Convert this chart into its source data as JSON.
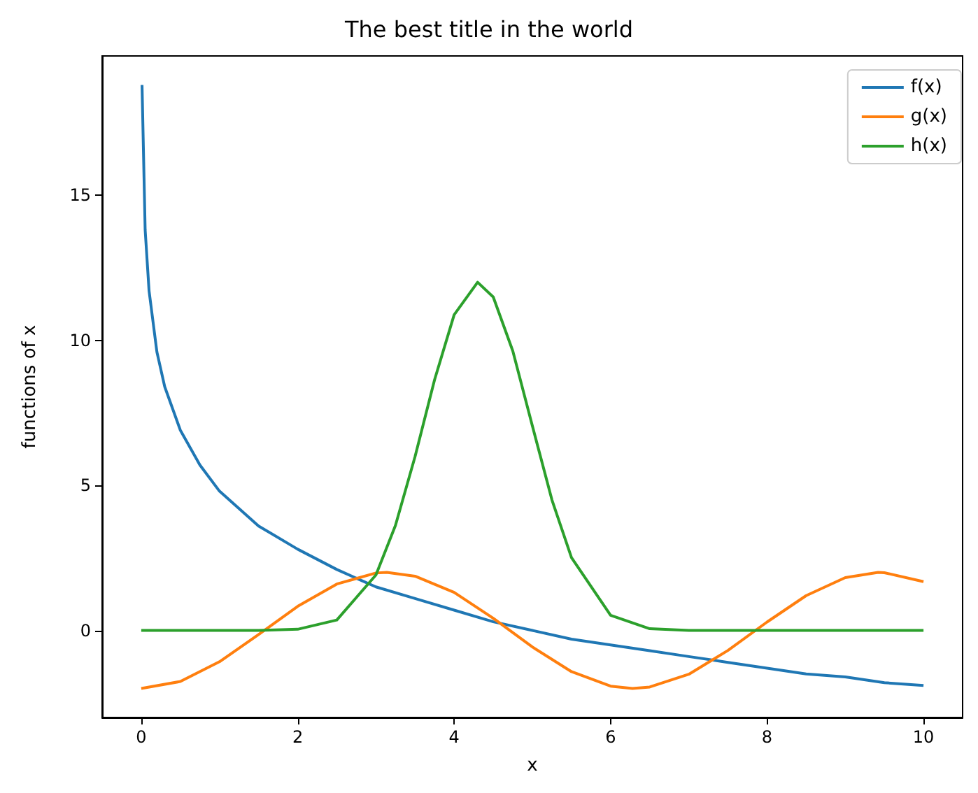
{
  "chart_data": {
    "type": "line",
    "title": "The best title in the world",
    "xlabel": "x",
    "ylabel": "functions of x",
    "xlim": [
      -0.5,
      10.5
    ],
    "xticks": [
      0,
      2,
      4,
      6,
      8,
      10
    ],
    "ylim": [
      -3,
      19.8
    ],
    "yticks": [
      0,
      5,
      10,
      15
    ],
    "grid": false,
    "legend": "top right",
    "marker": "none",
    "line_style": "solid",
    "series": [
      {
        "name": "f(x)",
        "color": "#1f77b4",
        "x": [
          0.01,
          0.05,
          0.1,
          0.2,
          0.3,
          0.5,
          0.75,
          1,
          1.5,
          2,
          2.5,
          3,
          3.5,
          4,
          4.5,
          5,
          5.5,
          6,
          6.5,
          7,
          7.5,
          8,
          8.5,
          9,
          9.5,
          10
        ],
        "values": [
          18.8,
          13.8,
          11.7,
          9.6,
          8.4,
          6.9,
          5.7,
          4.8,
          3.6,
          2.8,
          2.1,
          1.5,
          1.1,
          0.7,
          0.3,
          0,
          -0.3,
          -0.5,
          -0.7,
          -0.9,
          -1.1,
          -1.3,
          -1.5,
          -1.6,
          -1.8,
          -1.9
        ]
      },
      {
        "name": "g(x)",
        "color": "#ff7f0e",
        "x": [
          0,
          0.5,
          1,
          1.5,
          2,
          2.5,
          3,
          3.14,
          3.5,
          4,
          4.5,
          5,
          5.5,
          6,
          6.28,
          6.5,
          7,
          7.5,
          8,
          8.5,
          9,
          9.42,
          9.5,
          10
        ],
        "values": [
          -2,
          -1.76,
          -1.08,
          -0.14,
          0.83,
          1.6,
          1.98,
          2,
          1.87,
          1.31,
          0.42,
          -0.57,
          -1.42,
          -1.92,
          -2,
          -1.95,
          -1.51,
          -0.69,
          0.29,
          1.2,
          1.82,
          2,
          1.99,
          1.68
        ]
      },
      {
        "name": "h(x)",
        "color": "#2ca02c",
        "x": [
          0,
          1.5,
          2,
          2.5,
          3,
          3.25,
          3.5,
          3.75,
          4,
          4.3,
          4.5,
          4.75,
          5,
          5.25,
          5.5,
          6,
          6.5,
          7,
          10
        ],
        "values": [
          0,
          0,
          0.04,
          0.36,
          1.91,
          3.62,
          5.99,
          8.64,
          10.88,
          12,
          11.49,
          9.63,
          7.05,
          4.5,
          2.51,
          0.52,
          0.06,
          0,
          0
        ]
      }
    ]
  }
}
